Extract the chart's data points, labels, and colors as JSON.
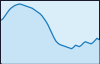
{
  "x": [
    0,
    1,
    2,
    3,
    4,
    5,
    6,
    7,
    8,
    9,
    10,
    11,
    12,
    13,
    14,
    15,
    16,
    17,
    18,
    19,
    20,
    21,
    22,
    23,
    24,
    25,
    26,
    27,
    28,
    29,
    30,
    31,
    32,
    33,
    34,
    35,
    36,
    37,
    38,
    39,
    40,
    41,
    42,
    43,
    44,
    45,
    46,
    47,
    48,
    49,
    50
  ],
  "y": [
    62,
    64,
    68,
    72,
    76,
    79,
    81,
    83,
    84,
    85,
    85,
    84,
    83,
    82,
    81,
    80,
    79,
    77,
    75,
    73,
    71,
    68,
    64,
    60,
    55,
    49,
    43,
    37,
    32,
    29,
    27,
    26,
    25,
    24,
    23,
    22,
    21,
    23,
    26,
    25,
    24,
    26,
    29,
    31,
    30,
    29,
    28,
    30,
    33,
    36,
    34
  ],
  "line_color": "#1a7abf",
  "fill_color": "#c6e4f5",
  "bg_outer": "#1a1a2e",
  "bg_inner": "#daeefa",
  "ylim_min": 0,
  "ylim_max": 90
}
